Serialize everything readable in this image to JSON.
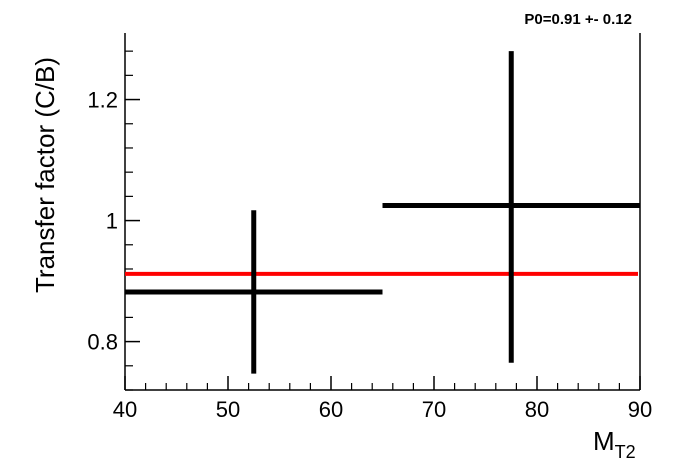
{
  "chart_data": {
    "type": "scatter",
    "title": "",
    "xlabel": "M",
    "xlabel_sub": "T2",
    "ylabel": "Transfer factor (C/B)",
    "xlim": [
      40,
      90
    ],
    "ylim": [
      0.72,
      1.31
    ],
    "x_ticks": [
      40,
      50,
      60,
      70,
      80,
      90
    ],
    "y_ticks": [
      0.8,
      1,
      1.2
    ],
    "x_tick_labels": [
      "40",
      "50",
      "60",
      "70",
      "80",
      "90"
    ],
    "y_tick_labels": [
      "0.8",
      "1",
      "1.2"
    ],
    "grid": false,
    "points": [
      {
        "x": 52.5,
        "x_low": 40,
        "x_high": 65,
        "y": 0.882,
        "y_err_low": 0.135,
        "y_err_high": 0.135
      },
      {
        "x": 77.5,
        "x_low": 65,
        "x_high": 90,
        "y": 1.025,
        "y_err_low": 0.26,
        "y_err_high": 0.255
      }
    ],
    "fit": {
      "label": "P0=0.91 +- 0.12",
      "value": 0.912,
      "color": "#ff0000"
    },
    "marker_color": "#000000"
  }
}
